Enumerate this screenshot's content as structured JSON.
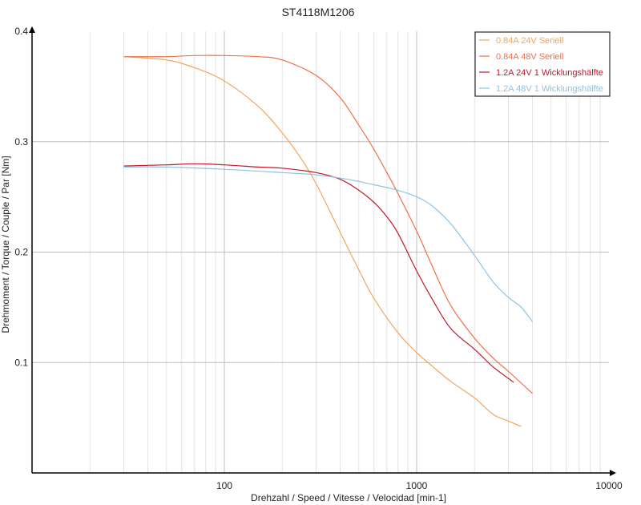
{
  "chart_data": {
    "type": "line",
    "title": "ST4118M1206",
    "xlabel": "Drehzahl / Speed / Vitesse / Velocidad [min-1]",
    "ylabel": "Drehmoment / Torque / Couple / Par [Nm]",
    "xscale": "log",
    "xlim": [
      10,
      10000
    ],
    "ylim": [
      0,
      0.4
    ],
    "x_ticks": [
      100,
      1000,
      10000
    ],
    "x_tick_labels": [
      "100",
      "1000",
      "10000"
    ],
    "y_ticks": [
      0.1,
      0.2,
      0.3,
      0.4
    ],
    "y_tick_labels": [
      "0.1",
      "0.2",
      "0.3",
      "0.4"
    ],
    "grid": true,
    "legend_position": "top-right",
    "series": [
      {
        "name": "0.84A  24V  Seriell",
        "color": "#f5a45a",
        "x": [
          30,
          50,
          70,
          100,
          150,
          200,
          250,
          300,
          400,
          500,
          600,
          800,
          1000,
          1200,
          1500,
          2000,
          2500,
          3000,
          3500
        ],
        "y": [
          0.377,
          0.374,
          0.367,
          0.355,
          0.332,
          0.308,
          0.285,
          0.262,
          0.218,
          0.184,
          0.158,
          0.127,
          0.109,
          0.097,
          0.083,
          0.068,
          0.053,
          0.047,
          0.042
        ]
      },
      {
        "name": "0.84A  48V  Seriell",
        "color": "#f07048",
        "x": [
          30,
          50,
          70,
          100,
          150,
          200,
          300,
          400,
          500,
          600,
          700,
          800,
          1000,
          1200,
          1500,
          2000,
          2500,
          3000,
          4000
        ],
        "y": [
          0.377,
          0.377,
          0.378,
          0.378,
          0.377,
          0.374,
          0.36,
          0.34,
          0.315,
          0.293,
          0.272,
          0.253,
          0.219,
          0.188,
          0.152,
          0.122,
          0.104,
          0.092,
          0.072
        ]
      },
      {
        "name": "1.2A  24V  1 Wicklungshälfte",
        "color": "#c0182a",
        "x": [
          30,
          50,
          70,
          100,
          150,
          200,
          300,
          400,
          500,
          600,
          700,
          800,
          1000,
          1200,
          1500,
          2000,
          2500,
          3200
        ],
        "y": [
          0.278,
          0.279,
          0.28,
          0.279,
          0.277,
          0.276,
          0.272,
          0.266,
          0.256,
          0.245,
          0.232,
          0.217,
          0.183,
          0.158,
          0.131,
          0.112,
          0.096,
          0.082
        ]
      },
      {
        "name": "1.2A  48V  1 Wicklungshälfte",
        "color": "#8ec3e3",
        "x": [
          30,
          50,
          100,
          200,
          300,
          400,
          500,
          600,
          800,
          1000,
          1200,
          1500,
          2000,
          2500,
          3000,
          3500,
          4000
        ],
        "y": [
          0.277,
          0.277,
          0.275,
          0.272,
          0.27,
          0.267,
          0.264,
          0.261,
          0.256,
          0.25,
          0.242,
          0.226,
          0.197,
          0.173,
          0.159,
          0.15,
          0.137
        ]
      }
    ]
  }
}
